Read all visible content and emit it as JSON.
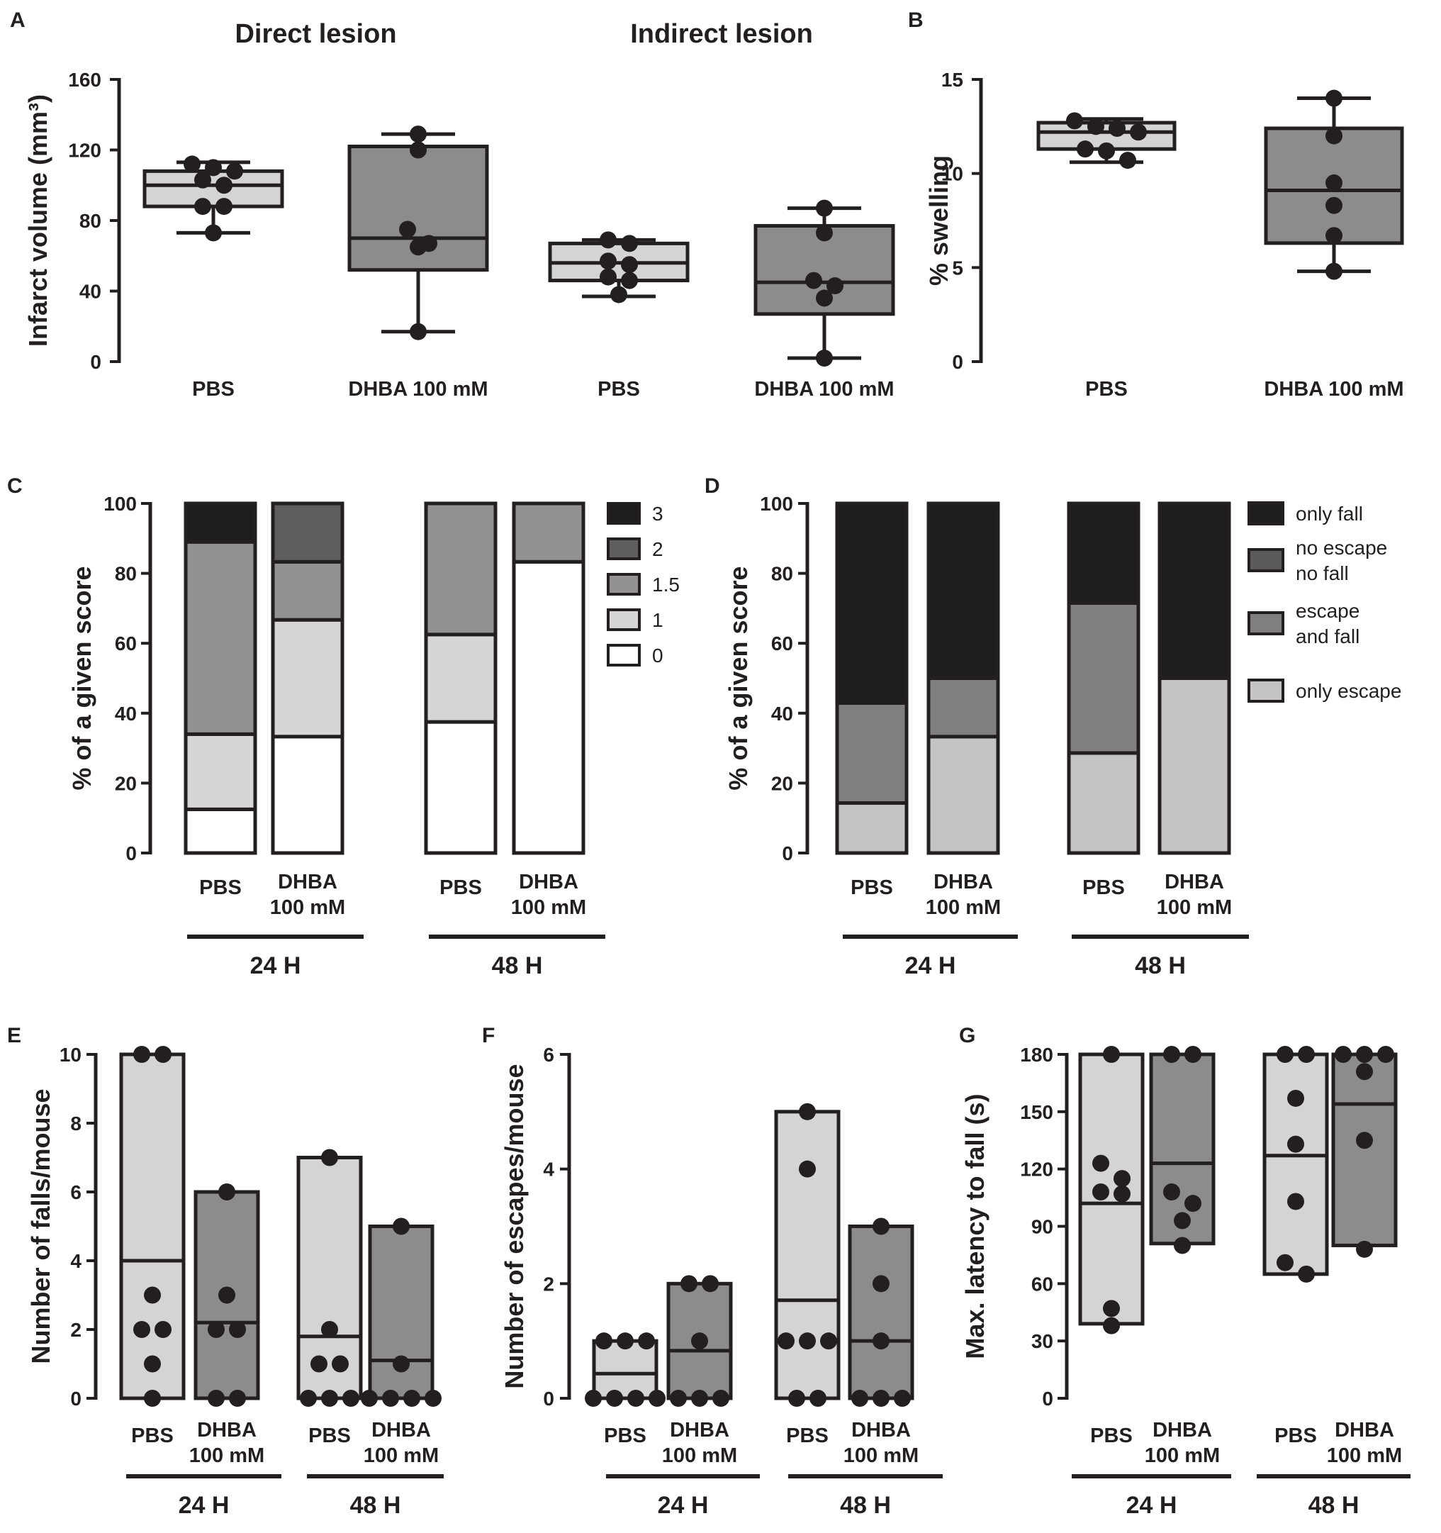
{
  "colors": {
    "ink": "#231f20",
    "pbs_fill": "#d4d4d4",
    "dhba_fill": "#8c8c8c",
    "score_3": "#1e1e1e",
    "score_2": "#5e5e5e",
    "score_1_5": "#929292",
    "score_1": "#d6d6d6",
    "score_0": "#ffffff",
    "only_fall": "#1e1e1e",
    "no_escape_no_fall": "#5a5a5a",
    "escape_and_fall": "#7f7f7f",
    "only_escape": "#c4c4c4"
  },
  "chart_data": [
    {
      "id": "A",
      "panel_label": "A",
      "type": "box",
      "ylabel": "Infarct volume (mm³)",
      "ylim": [
        0,
        160
      ],
      "yticks": [
        0,
        40,
        80,
        120,
        160
      ],
      "group_titles": [
        "Direct lesion",
        "Indirect lesion"
      ],
      "boxes": [
        {
          "label": "PBS",
          "group": "Direct lesion",
          "fill": "pbs",
          "min": 73,
          "q1": 88,
          "median": 100,
          "q3": 108,
          "max": 113,
          "points": [
            112,
            110,
            108,
            103,
            100,
            88,
            88,
            73
          ]
        },
        {
          "label": "DHBA 100 mM",
          "group": "Direct lesion",
          "fill": "dhba",
          "min": 17,
          "q1": 52,
          "median": 70,
          "q3": 122,
          "max": 129,
          "points": [
            129,
            120,
            75,
            67,
            65,
            17
          ]
        },
        {
          "label": "PBS",
          "group": "Indirect lesion",
          "fill": "pbs",
          "min": 37,
          "q1": 46,
          "median": 56,
          "q3": 67,
          "max": 69,
          "points": [
            69,
            67,
            57,
            55,
            48,
            46,
            38
          ]
        },
        {
          "label": "DHBA 100 mM",
          "group": "Indirect lesion",
          "fill": "dhba",
          "min": 2,
          "q1": 27,
          "median": 45,
          "q3": 77,
          "max": 87,
          "points": [
            87,
            73,
            46,
            43,
            36,
            2
          ]
        }
      ]
    },
    {
      "id": "B",
      "panel_label": "B",
      "type": "box",
      "ylabel": "% swelling",
      "ylim": [
        0,
        15
      ],
      "yticks": [
        0,
        5,
        10,
        15
      ],
      "group_titles": [],
      "boxes": [
        {
          "label": "PBS",
          "fill": "pbs",
          "min": 10.6,
          "q1": 11.3,
          "median": 12.2,
          "q3": 12.7,
          "max": 12.9,
          "points": [
            12.8,
            12.5,
            12.4,
            12.2,
            11.3,
            11.2,
            10.7
          ]
        },
        {
          "label": "DHBA 100 mM",
          "fill": "dhba",
          "min": 4.8,
          "q1": 6.3,
          "median": 9.1,
          "q3": 12.4,
          "max": 14.0,
          "points": [
            14.0,
            12.0,
            9.5,
            8.3,
            6.7,
            4.8
          ]
        }
      ]
    },
    {
      "id": "C",
      "panel_label": "C",
      "type": "stacked_bar",
      "ylabel": "% of a given score",
      "ylim": [
        0,
        100
      ],
      "yticks": [
        0,
        20,
        40,
        60,
        80,
        100
      ],
      "categories": [
        {
          "label1": "PBS",
          "label2": "",
          "timepoint": "24 H"
        },
        {
          "label1": "DHBA",
          "label2": "100 mM",
          "timepoint": "24 H"
        },
        {
          "label1": "PBS",
          "label2": "",
          "timepoint": "48 H"
        },
        {
          "label1": "DHBA",
          "label2": "100 mM",
          "timepoint": "48 H"
        }
      ],
      "groups": [
        "24 H",
        "48 H"
      ],
      "legend": [
        {
          "name": "3",
          "color_key": "score_3"
        },
        {
          "name": "2",
          "color_key": "score_2"
        },
        {
          "name": "1.5",
          "color_key": "score_1_5"
        },
        {
          "name": "1",
          "color_key": "score_1"
        },
        {
          "name": "0",
          "color_key": "score_0"
        }
      ],
      "series": [
        {
          "name": "0",
          "color_key": "score_0",
          "values": [
            12.5,
            33.3,
            37.5,
            83.3
          ]
        },
        {
          "name": "1",
          "color_key": "score_1",
          "values": [
            21.5,
            33.4,
            25.0,
            0
          ]
        },
        {
          "name": "1.5",
          "color_key": "score_1_5",
          "values": [
            55.0,
            16.6,
            37.5,
            16.7
          ]
        },
        {
          "name": "2",
          "color_key": "score_2",
          "values": [
            0,
            16.7,
            0,
            0
          ]
        },
        {
          "name": "3",
          "color_key": "score_3",
          "values": [
            11.0,
            0,
            0,
            0
          ]
        }
      ]
    },
    {
      "id": "D",
      "panel_label": "D",
      "type": "stacked_bar",
      "ylabel": "% of a given score",
      "ylim": [
        0,
        100
      ],
      "yticks": [
        0,
        20,
        40,
        60,
        80,
        100
      ],
      "categories": [
        {
          "label1": "PBS",
          "label2": "",
          "timepoint": "24 H"
        },
        {
          "label1": "DHBA",
          "label2": "100 mM",
          "timepoint": "24 H"
        },
        {
          "label1": "PBS",
          "label2": "",
          "timepoint": "48 H"
        },
        {
          "label1": "DHBA",
          "label2": "100 mM",
          "timepoint": "48 H"
        }
      ],
      "groups": [
        "24 H",
        "48 H"
      ],
      "legend": [
        {
          "name": "only fall",
          "color_key": "only_fall"
        },
        {
          "name": "no escape\nno fall",
          "color_key": "no_escape_no_fall"
        },
        {
          "name": "escape\nand fall",
          "color_key": "escape_and_fall"
        },
        {
          "name": "only escape",
          "color_key": "only_escape"
        }
      ],
      "series": [
        {
          "name": "only escape",
          "color_key": "only_escape",
          "values": [
            14.3,
            33.3,
            28.6,
            50.0
          ]
        },
        {
          "name": "escape and fall",
          "color_key": "escape_and_fall",
          "values": [
            28.6,
            16.7,
            42.9,
            0
          ]
        },
        {
          "name": "only fall",
          "color_key": "only_fall",
          "values": [
            57.1,
            50.0,
            28.5,
            50.0
          ]
        }
      ]
    },
    {
      "id": "E",
      "panel_label": "E",
      "type": "floating_bar",
      "ylabel": "Number of falls/mouse",
      "ylim": [
        0,
        10
      ],
      "yticks": [
        0,
        2,
        4,
        6,
        8,
        10
      ],
      "categories": [
        {
          "label1": "PBS",
          "label2": "",
          "timepoint": "24 H",
          "fill": "pbs",
          "min": 0,
          "max": 10,
          "median": 4.0,
          "points": [
            10,
            10,
            3,
            2,
            2,
            1,
            0
          ]
        },
        {
          "label1": "DHBA",
          "label2": "100 mM",
          "timepoint": "24 H",
          "fill": "dhba",
          "min": 0,
          "max": 6,
          "median": 2.2,
          "points": [
            6,
            3,
            2,
            2,
            0,
            0
          ]
        },
        {
          "label1": "PBS",
          "label2": "",
          "timepoint": "48 H",
          "fill": "pbs",
          "min": 0,
          "max": 7,
          "median": 1.8,
          "points": [
            7,
            2,
            1,
            1,
            0,
            0,
            0
          ]
        },
        {
          "label1": "DHBA",
          "label2": "100 mM",
          "timepoint": "48 H",
          "fill": "dhba",
          "min": 0,
          "max": 5,
          "median": 1.1,
          "points": [
            5,
            1,
            0,
            0,
            0,
            0
          ]
        }
      ],
      "groups": [
        "24 H",
        "48 H"
      ]
    },
    {
      "id": "F",
      "panel_label": "F",
      "type": "floating_bar",
      "ylabel": "Number of escapes/mouse",
      "ylim": [
        0,
        6
      ],
      "yticks": [
        0,
        2,
        4,
        6
      ],
      "categories": [
        {
          "label1": "PBS",
          "label2": "",
          "timepoint": "24 H",
          "fill": "pbs",
          "min": 0,
          "max": 1,
          "median": 0.43,
          "points": [
            1,
            1,
            1,
            0,
            0,
            0,
            0
          ]
        },
        {
          "label1": "DHBA",
          "label2": "100 mM",
          "timepoint": "24 H",
          "fill": "dhba",
          "min": 0,
          "max": 2,
          "median": 0.83,
          "points": [
            2,
            2,
            1,
            0,
            0,
            0
          ]
        },
        {
          "label1": "PBS",
          "label2": "",
          "timepoint": "48 H",
          "fill": "pbs",
          "min": 0,
          "max": 5,
          "median": 1.71,
          "points": [
            5,
            4,
            1,
            1,
            1,
            0,
            0
          ]
        },
        {
          "label1": "DHBA",
          "label2": "100 mM",
          "timepoint": "48 H",
          "fill": "dhba",
          "min": 0,
          "max": 3,
          "median": 1.0,
          "points": [
            3,
            2,
            1,
            0,
            0,
            0
          ]
        }
      ],
      "groups": [
        "24 H",
        "48 H"
      ]
    },
    {
      "id": "G",
      "panel_label": "G",
      "type": "floating_bar",
      "ylabel": "Max. latency to fall (s)",
      "ylim": [
        0,
        180
      ],
      "yticks": [
        0,
        30,
        60,
        90,
        120,
        150,
        180
      ],
      "categories": [
        {
          "label1": "PBS",
          "label2": "",
          "timepoint": "24 H",
          "fill": "pbs",
          "min": 39,
          "max": 180,
          "median": 102,
          "points": [
            180,
            123,
            115,
            108,
            107,
            47,
            38
          ]
        },
        {
          "label1": "DHBA",
          "label2": "100 mM",
          "timepoint": "24 H",
          "fill": "dhba",
          "min": 81,
          "max": 180,
          "median": 123,
          "points": [
            180,
            180,
            108,
            102,
            93,
            80
          ]
        },
        {
          "label1": "PBS",
          "label2": "",
          "timepoint": "48 H",
          "fill": "pbs",
          "min": 65,
          "max": 180,
          "median": 127,
          "points": [
            180,
            180,
            157,
            133,
            103,
            71,
            65
          ]
        },
        {
          "label1": "DHBA",
          "label2": "100 mM",
          "timepoint": "48 H",
          "fill": "dhba",
          "min": 80,
          "max": 180,
          "median": 154,
          "points": [
            180,
            180,
            180,
            171,
            135,
            78
          ]
        }
      ],
      "groups": [
        "24 H",
        "48 H"
      ]
    }
  ]
}
